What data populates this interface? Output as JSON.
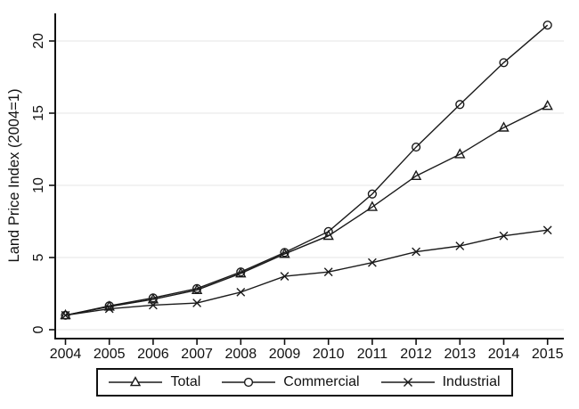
{
  "chart_data": {
    "type": "line",
    "title": "",
    "xlabel": "",
    "ylabel": "Land Price Index (2004=1)",
    "x": [
      2004,
      2005,
      2006,
      2007,
      2008,
      2009,
      2010,
      2011,
      2012,
      2013,
      2014,
      2015
    ],
    "y_ticks": [
      0,
      5,
      10,
      15,
      20
    ],
    "ylim": [
      0,
      22
    ],
    "grid": "horizontal",
    "legend_position": "bottom-center",
    "series": [
      {
        "name": "Total",
        "marker": "triangle",
        "values": [
          1.0,
          1.6,
          2.1,
          2.75,
          3.9,
          5.25,
          6.5,
          8.5,
          10.65,
          12.15,
          14.0,
          15.5
        ]
      },
      {
        "name": "Commercial",
        "marker": "circle",
        "values": [
          1.0,
          1.65,
          2.2,
          2.85,
          4.0,
          5.35,
          6.8,
          9.4,
          12.65,
          15.6,
          18.5,
          21.1
        ]
      },
      {
        "name": "Industrial",
        "marker": "x",
        "values": [
          1.0,
          1.45,
          1.7,
          1.85,
          2.6,
          3.7,
          4.0,
          4.65,
          5.4,
          5.8,
          6.5,
          6.9
        ]
      }
    ],
    "line_color": "#1a1a1a",
    "grid_color": "#e9e9e9",
    "axis_color": "#111111",
    "background": "#ffffff"
  }
}
